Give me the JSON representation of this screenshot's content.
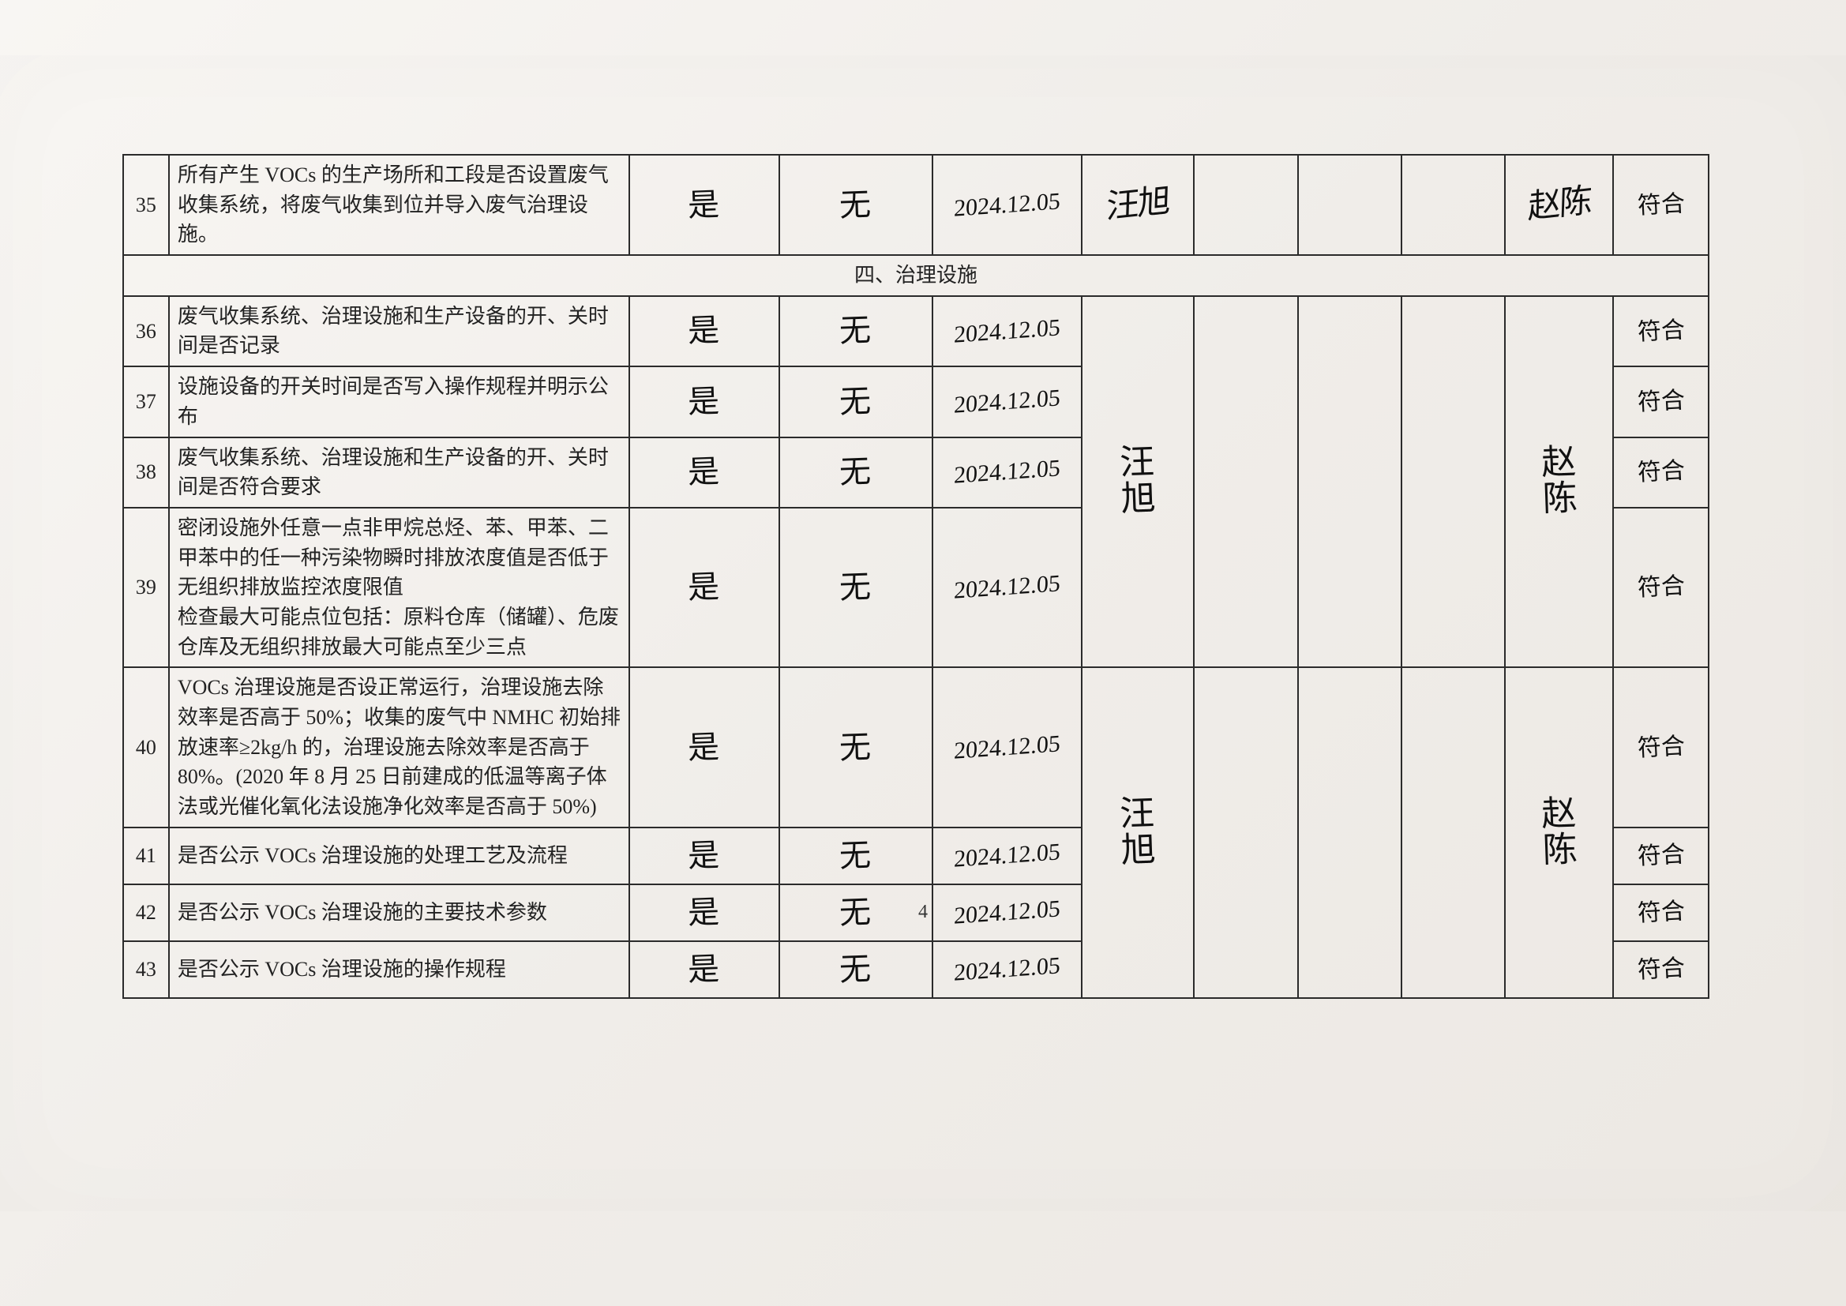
{
  "page_number": "4",
  "section_header": "四、治理设施",
  "columns": {
    "handwritten_yes": "是",
    "handwritten_wu": "无",
    "signature_a": "汪旭",
    "signature_b": "汪旭",
    "review_a": "赵陈",
    "review_b": "赵\n陈",
    "review_c": "赵\n陈",
    "result": "符合"
  },
  "rows": [
    {
      "num": "35",
      "desc": "所有产生 VOCs 的生产场所和工段是否设置废气收集系统，将废气收集到位并导入废气治理设施。",
      "col_a": "是",
      "col_b": "无",
      "col_c": "2024.12.05",
      "col_d_sig": true,
      "col_h": "赵陈",
      "col_i": "符合"
    },
    {
      "num": "36",
      "desc": "废气收集系统、治理设施和生产设备的开、关时间是否记录",
      "col_a": "是",
      "col_b": "无",
      "col_c": "2024.12.05",
      "col_i": "符合"
    },
    {
      "num": "37",
      "desc": "设施设备的开关时间是否写入操作规程并明示公布",
      "col_a": "是",
      "col_b": "无",
      "col_c": "2024.12.05",
      "col_i": "符合"
    },
    {
      "num": "38",
      "desc": "废气收集系统、治理设施和生产设备的开、关时间是否符合要求",
      "col_a": "是",
      "col_b": "无",
      "col_c": "2024.12.05",
      "col_i": "符合"
    },
    {
      "num": "39",
      "desc": "密闭设施外任意一点非甲烷总烃、苯、甲苯、二甲苯中的任一种污染物瞬时排放浓度值是否低于无组织排放监控浓度限值\n检查最大可能点位包括：原料仓库（储罐）、危废仓库及无组织排放最大可能点至少三点",
      "col_a": "是",
      "col_b": "无",
      "col_c": "2024.12.05",
      "col_i": "符合"
    },
    {
      "num": "40",
      "desc": "VOCs 治理设施是否设正常运行，治理设施去除效率是否高于 50%；收集的废气中 NMHC 初始排放速率≥2kg/h 的，治理设施去除效率是否高于 80%。(2020 年 8 月 25 日前建成的低温等离子体法或光催化氧化法设施净化效率是否高于 50%)",
      "col_a": "是",
      "col_b": "无",
      "col_c": "2024.12.05",
      "col_i": "符合"
    },
    {
      "num": "41",
      "desc": "是否公示 VOCs 治理设施的处理工艺及流程",
      "col_a": "是",
      "col_b": "无",
      "col_c": "2024.12.05",
      "col_i": "符合"
    },
    {
      "num": "42",
      "desc": "是否公示 VOCs 治理设施的主要技术参数",
      "col_a": "是",
      "col_b": "无",
      "col_c": "2024.12.05",
      "col_i": "符合"
    },
    {
      "num": "43",
      "desc": "是否公示 VOCs 治理设施的操作规程",
      "col_a": "是",
      "col_b": "无",
      "col_c": "2024.12.05",
      "col_i": "符合"
    }
  ]
}
